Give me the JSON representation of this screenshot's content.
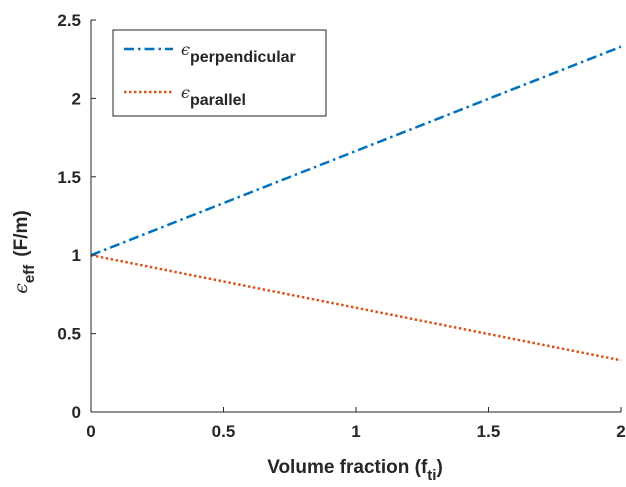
{
  "chart_data": {
    "type": "line",
    "xlabel": {
      "main": "Volume fraction (f",
      "sub": "ti",
      "close": ")"
    },
    "ylabel": {
      "symbol": "ϵ",
      "sub": "eff",
      "unit": "(F/m)"
    },
    "xlim": [
      0,
      2
    ],
    "ylim": [
      0,
      2.5
    ],
    "x_ticks": [
      0,
      0.5,
      1,
      1.5,
      2
    ],
    "x_tick_labels": [
      "0",
      "0.5",
      "1",
      "1.5",
      "2"
    ],
    "y_ticks": [
      0,
      0.5,
      1,
      1.5,
      2,
      2.5
    ],
    "y_tick_labels": [
      "0",
      "0.5",
      "1",
      "1.5",
      "2",
      "2.5"
    ],
    "grid": false,
    "legend_position": "top-left",
    "series": [
      {
        "symbol": "ϵ",
        "sub": "perpendicular",
        "color": "#0072BD",
        "dash": "dash-dot",
        "x": [
          0,
          2
        ],
        "y": [
          1.0,
          2.33
        ]
      },
      {
        "symbol": "ϵ",
        "sub": "parallel",
        "color": "#D95319",
        "dash": "dotted",
        "x": [
          0,
          2
        ],
        "y": [
          1.0,
          0.33
        ]
      }
    ]
  }
}
